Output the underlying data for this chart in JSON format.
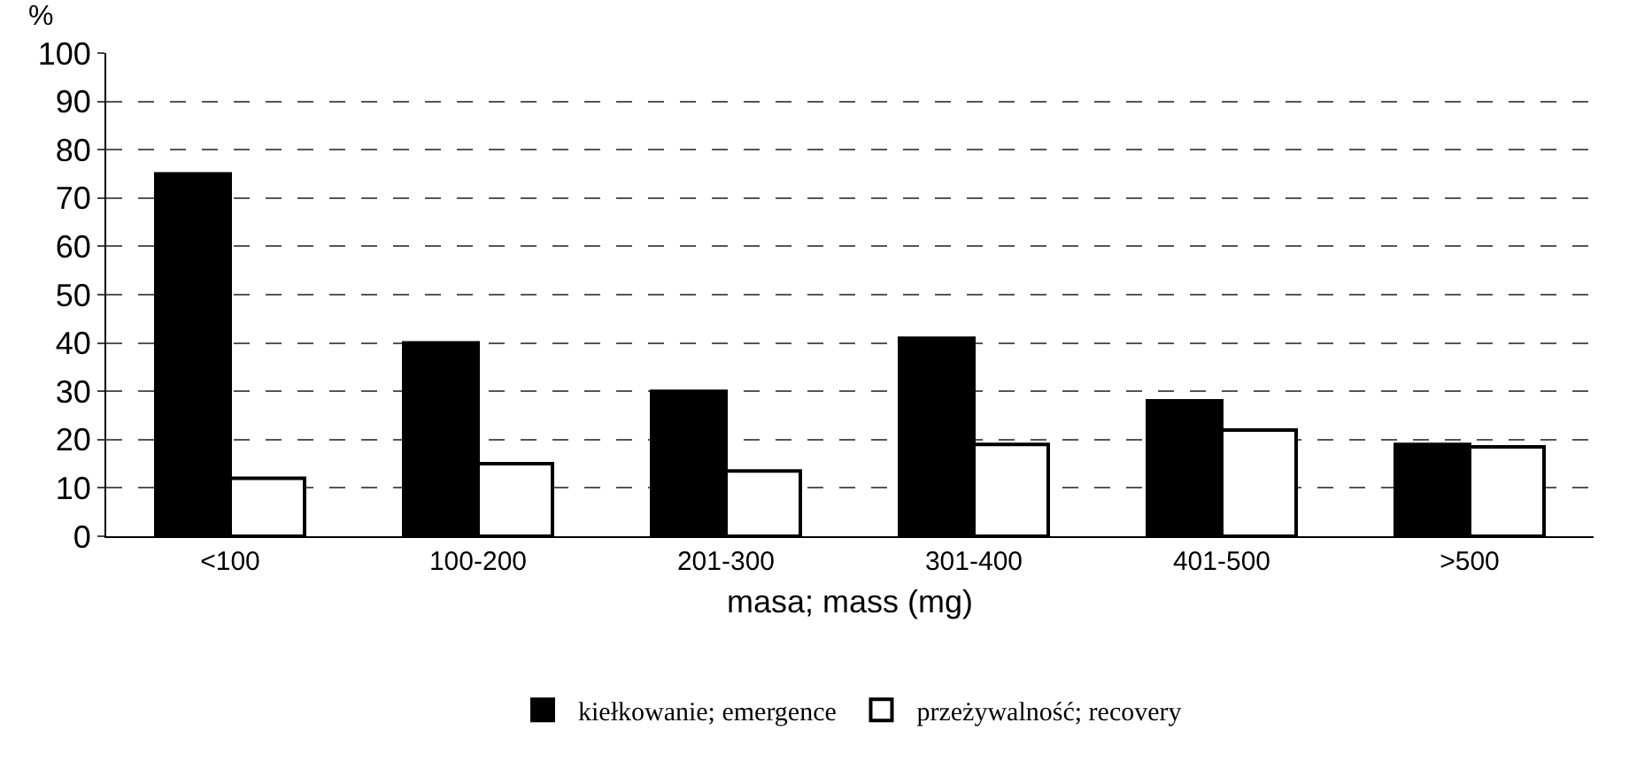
{
  "chart_data": {
    "type": "bar",
    "ylabel": "%",
    "xlabel": "masa; mass (mg)",
    "categories": [
      "<100",
      "100-200",
      "201-300",
      "301-400",
      "401-500",
      ">500"
    ],
    "series": [
      {
        "name": "kiełkowanie; emergence",
        "color": "#000000",
        "values": [
          75,
          40,
          30,
          41,
          28,
          19
        ]
      },
      {
        "name": "przeżywalność; recovery",
        "color": "#ffffff",
        "values": [
          12,
          15,
          13.5,
          19,
          22,
          18.5
        ]
      }
    ],
    "ylim": [
      0,
      100
    ],
    "yticks": [
      0,
      10,
      20,
      30,
      40,
      50,
      60,
      70,
      80,
      90,
      100
    ],
    "grid": "y",
    "legend": "bottom"
  }
}
